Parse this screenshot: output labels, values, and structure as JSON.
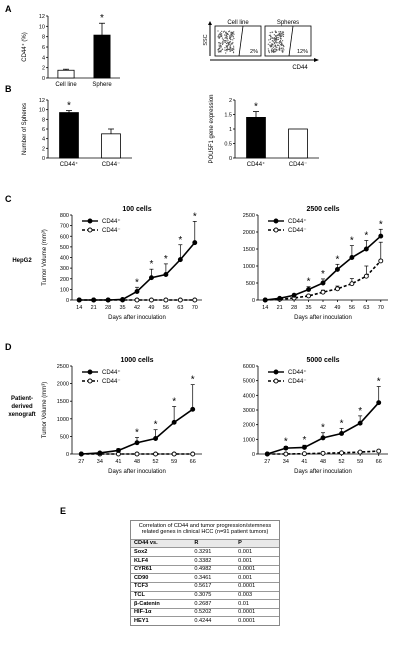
{
  "panels": {
    "A": {
      "letter": "A",
      "bar": {
        "ylabel": "CD44⁺ (%)",
        "categories": [
          "Cell line",
          "Sphere"
        ],
        "values": [
          1.5,
          8.3
        ],
        "errors": [
          0.2,
          2.3
        ],
        "ylim": [
          0,
          12
        ],
        "yticks": [
          "0",
          "2",
          "4",
          "6",
          "8",
          "10",
          "12"
        ],
        "fills": [
          "#ffffff",
          "#000000"
        ],
        "star": "*"
      },
      "flow": {
        "yaxis": "SSC",
        "xaxis": "CD44",
        "boxes": [
          {
            "title": "Cell line",
            "pct": "2%"
          },
          {
            "title": "Spheres",
            "pct": "12%"
          }
        ]
      }
    },
    "B": {
      "letter": "B",
      "spheres": {
        "ylabel": "Number of Spheres",
        "categories": [
          "CD44⁺",
          "CD44⁻"
        ],
        "values": [
          9.4,
          5.0
        ],
        "errors": [
          0.4,
          1.0
        ],
        "ylim": [
          0,
          12
        ],
        "yticks": [
          "0",
          "2",
          "4",
          "6",
          "8",
          "10",
          "12"
        ],
        "fills": [
          "#000000",
          "#ffffff"
        ],
        "star": "*"
      },
      "pou": {
        "ylabel": "POU5F1 gene expression",
        "categories": [
          "CD44⁺",
          "CD44⁻"
        ],
        "values": [
          1.4,
          1.0
        ],
        "errors": [
          0.2,
          0.0
        ],
        "ylim": [
          0,
          2
        ],
        "yticks": [
          "0",
          "0.5",
          "1",
          "1.5",
          "2"
        ],
        "fills": [
          "#000000",
          "#ffffff"
        ],
        "star": "*"
      }
    },
    "C": {
      "letter": "C",
      "row_label": "HepG2",
      "left": {
        "title": "100 cells",
        "ylabel": "Tumor Volume (mm³)",
        "xlabel": "Days after inoculation",
        "x": [
          14,
          21,
          28,
          35,
          42,
          49,
          56,
          63,
          70
        ],
        "ylim": [
          0,
          800
        ],
        "yticks": [
          "0",
          "100",
          "200",
          "300",
          "400",
          "500",
          "600",
          "700",
          "800"
        ],
        "series": [
          {
            "name": "CD44⁺",
            "values": [
              0,
              0,
              0,
              5,
              80,
              210,
              240,
              380,
              540
            ],
            "errors": [
              0,
              0,
              0,
              5,
              40,
              80,
              100,
              140,
              200
            ],
            "dashed": false,
            "filled": true
          },
          {
            "name": "CD44⁻",
            "values": [
              0,
              0,
              0,
              0,
              0,
              0,
              0,
              0,
              0
            ],
            "errors": [
              0,
              0,
              0,
              0,
              0,
              0,
              0,
              0,
              0
            ],
            "dashed": true,
            "filled": false
          }
        ],
        "stars_at": [
          42,
          49,
          56,
          63,
          70
        ]
      },
      "right": {
        "title": "2500 cells",
        "ylabel": "",
        "xlabel": "Days after inoculation",
        "x": [
          14,
          21,
          28,
          35,
          42,
          49,
          56,
          63,
          70
        ],
        "ylim": [
          0,
          2500
        ],
        "yticks": [
          "0",
          "500",
          "1000",
          "1500",
          "2000",
          "2500"
        ],
        "series": [
          {
            "name": "CD44⁺",
            "values": [
              0,
              50,
              140,
              310,
              500,
              900,
              1250,
              1500,
              1880
            ],
            "errors": [
              0,
              20,
              40,
              80,
              120,
              150,
              350,
              250,
              200
            ],
            "dashed": false,
            "filled": true
          },
          {
            "name": "CD44⁻",
            "values": [
              0,
              20,
              60,
              120,
              230,
              330,
              480,
              700,
              1150
            ],
            "errors": [
              0,
              10,
              20,
              40,
              60,
              80,
              150,
              300,
              550
            ],
            "dashed": true,
            "filled": false
          }
        ],
        "stars_at": [
          35,
          42,
          49,
          56,
          63,
          70
        ]
      }
    },
    "D": {
      "letter": "D",
      "row_label": [
        "Patient-",
        "derived",
        "xenograft"
      ],
      "left": {
        "title": "1000 cells",
        "ylabel": "Tumor Volume (mm³)",
        "xlabel": "Days after inoculation",
        "x": [
          27,
          34,
          41,
          48,
          52,
          59,
          66
        ],
        "ylim": [
          0,
          2500
        ],
        "yticks": [
          "0",
          "500",
          "1000",
          "1500",
          "2000",
          "2500"
        ],
        "series": [
          {
            "name": "CD44⁺",
            "values": [
              0,
              30,
              100,
              320,
              440,
              900,
              1270
            ],
            "errors": [
              0,
              20,
              50,
              150,
              250,
              450,
              700
            ],
            "dashed": false,
            "filled": true
          },
          {
            "name": "CD44⁻",
            "values": [
              0,
              0,
              0,
              0,
              0,
              0,
              0
            ],
            "errors": [
              0,
              0,
              0,
              0,
              0,
              0,
              0
            ],
            "dashed": true,
            "filled": false
          }
        ],
        "stars_at": [
          48,
          52,
          59,
          66
        ]
      },
      "right": {
        "title": "5000 cells",
        "ylabel": "",
        "xlabel": "Days after inoculation",
        "x": [
          27,
          34,
          41,
          48,
          52,
          59,
          66
        ],
        "ylim": [
          0,
          6000
        ],
        "yticks": [
          "0",
          "1000",
          "2000",
          "3000",
          "4000",
          "5000",
          "6000"
        ],
        "series": [
          {
            "name": "CD44⁺",
            "values": [
              0,
              400,
              450,
              1100,
              1400,
              2100,
              3500
            ],
            "errors": [
              0,
              120,
              150,
              350,
              350,
              500,
              1100
            ],
            "dashed": false,
            "filled": true
          },
          {
            "name": "CD44⁻",
            "values": [
              0,
              0,
              20,
              50,
              80,
              130,
              200
            ],
            "errors": [
              0,
              0,
              10,
              20,
              30,
              50,
              70
            ],
            "dashed": true,
            "filled": false
          }
        ],
        "stars_at": [
          34,
          41,
          48,
          52,
          59,
          66
        ]
      }
    },
    "E": {
      "letter": "E",
      "caption": "Correlation of CD44 and tumor progression/stemness related genes in clinical HCC (n=91 patient tumors)",
      "headers": [
        "CD44 vs.",
        "R",
        "P"
      ],
      "rows": [
        [
          "Sox2",
          "0.3291",
          "0.001"
        ],
        [
          "KLF4",
          "0.3382",
          "0.001"
        ],
        [
          "CYR61",
          "0.4982",
          "0.0001"
        ],
        [
          "CD90",
          "0.3461",
          "0.001"
        ],
        [
          "TCF3",
          "0.5617",
          "0.0001"
        ],
        [
          "TCL",
          "0.3075",
          "0.003"
        ],
        [
          "β-Catenin",
          "0.2687",
          "0.01"
        ],
        [
          "HIF-1α",
          "0.5202",
          "0.0001"
        ],
        [
          "HEY1",
          "0.4244",
          "0.0001"
        ]
      ]
    }
  }
}
